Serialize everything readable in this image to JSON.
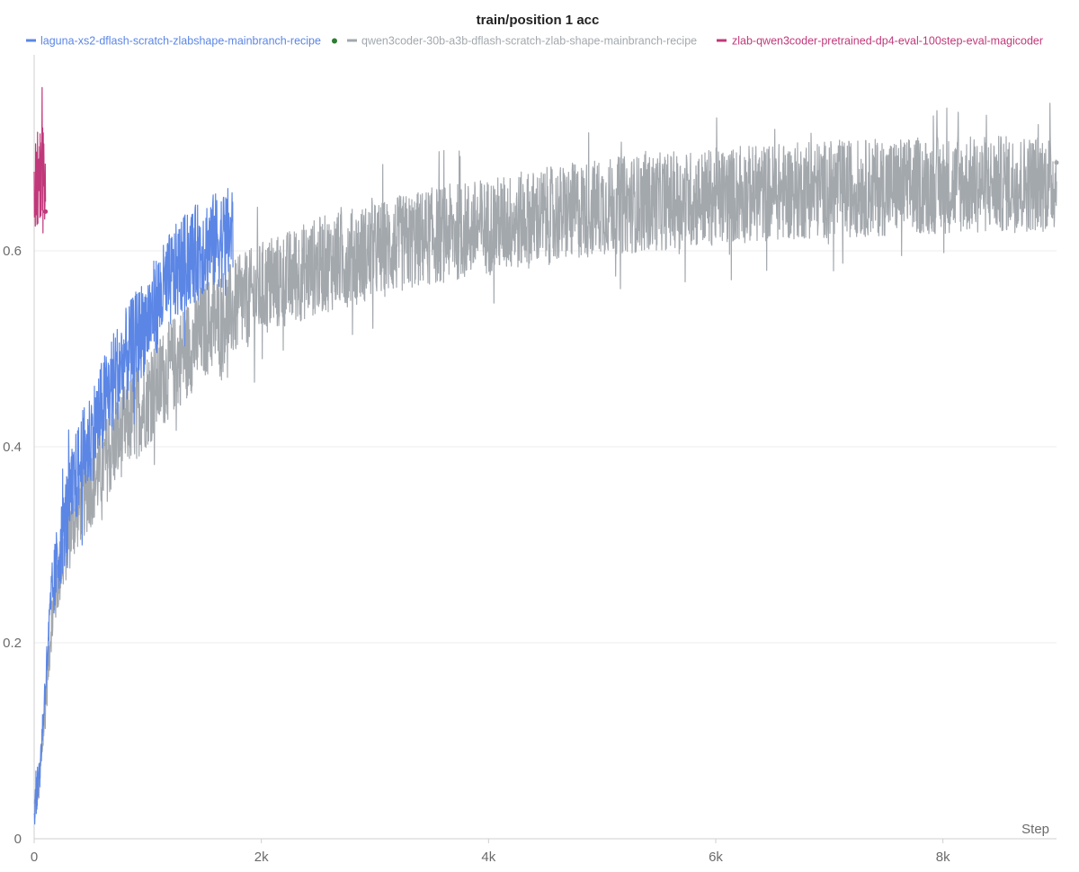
{
  "chart_data": {
    "type": "line",
    "title": "train/position 1 acc",
    "xlabel": "Step",
    "ylabel": "",
    "xlim": [
      0,
      9000
    ],
    "ylim": [
      0,
      0.8
    ],
    "x_ticks": [
      0,
      2000,
      4000,
      6000,
      8000
    ],
    "x_tick_labels": [
      "0",
      "2k",
      "4k",
      "6k",
      "8k"
    ],
    "y_ticks": [
      0,
      0.2,
      0.4,
      0.6
    ],
    "y_tick_labels": [
      "0",
      "0.2",
      "0.4",
      "0.6"
    ],
    "grid": true,
    "legend_position": "top",
    "series": [
      {
        "name": "laguna-xs2-dflash-scratch-zlabshape-mainbranch-recipe",
        "color": "#5b86e5",
        "legend_dot_color": "#2e7d32",
        "x": [
          0,
          50,
          100,
          150,
          200,
          300,
          400,
          500,
          600,
          700,
          800,
          900,
          1000,
          1100,
          1200,
          1300,
          1400,
          1500,
          1600,
          1700,
          1750
        ],
        "mean": [
          0.03,
          0.07,
          0.16,
          0.24,
          0.28,
          0.34,
          0.38,
          0.41,
          0.44,
          0.47,
          0.49,
          0.51,
          0.53,
          0.55,
          0.57,
          0.585,
          0.595,
          0.605,
          0.61,
          0.615,
          0.62
        ],
        "noise": [
          0.02,
          0.02,
          0.02,
          0.035,
          0.04,
          0.045,
          0.05,
          0.05,
          0.05,
          0.05,
          0.05,
          0.05,
          0.05,
          0.05,
          0.05,
          0.05,
          0.05,
          0.05,
          0.05,
          0.05,
          0.05
        ]
      },
      {
        "name": "qwen3coder-30b-a3b-dflash-scratch-zlab-shape-mainbranch-recipe",
        "color": "#a3a8ad",
        "x": [
          0,
          50,
          100,
          150,
          200,
          300,
          400,
          600,
          800,
          1000,
          1200,
          1500,
          2000,
          2500,
          3000,
          3500,
          4000,
          4500,
          5000,
          5500,
          6000,
          6500,
          7000,
          7500,
          8000,
          8500,
          9000
        ],
        "mean": [
          0.03,
          0.06,
          0.14,
          0.22,
          0.26,
          0.31,
          0.34,
          0.38,
          0.42,
          0.45,
          0.48,
          0.52,
          0.56,
          0.585,
          0.6,
          0.615,
          0.625,
          0.635,
          0.645,
          0.65,
          0.655,
          0.66,
          0.663,
          0.665,
          0.667,
          0.668,
          0.67
        ],
        "noise": [
          0.02,
          0.02,
          0.025,
          0.03,
          0.035,
          0.04,
          0.04,
          0.045,
          0.045,
          0.05,
          0.05,
          0.05,
          0.05,
          0.05,
          0.05,
          0.05,
          0.05,
          0.05,
          0.05,
          0.05,
          0.05,
          0.05,
          0.05,
          0.05,
          0.05,
          0.05,
          0.05
        ],
        "last_value": 0.69
      },
      {
        "name": "zlab-qwen3coder-pretrained-dp4-eval-100step-eval-magicoder",
        "color": "#c0387a",
        "x": [
          0,
          25,
          50,
          75,
          100
        ],
        "mean": [
          0.66,
          0.67,
          0.68,
          0.69,
          0.66
        ],
        "noise": [
          0.04,
          0.05,
          0.05,
          0.05,
          0.04
        ],
        "last_value": 0.64
      }
    ]
  }
}
